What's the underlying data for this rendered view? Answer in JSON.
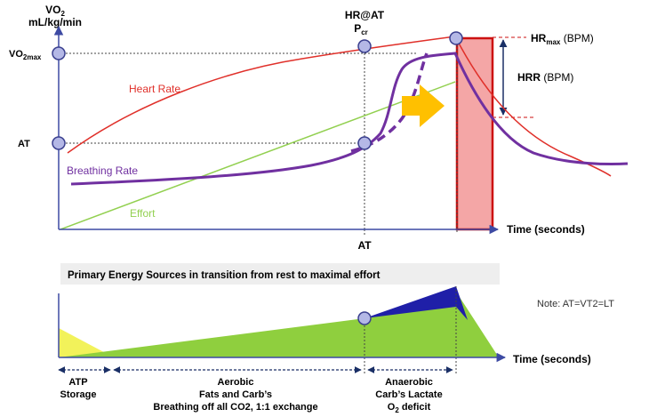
{
  "top_chart": {
    "y_axis_label_line1": "VO",
    "y_axis_label_sub": "2",
    "y_axis_label_line2": "mL/kg/min",
    "vo2max_label": "VO",
    "vo2max_sub": "2max",
    "at_label": "AT",
    "hr_at_label": "HR@AT",
    "pcr_label": "P",
    "pcr_sub": "cr",
    "hrmax_label": "HR",
    "hrmax_sub": "max",
    "hrmax_unit": " (BPM)",
    "hrr_label": "HRR",
    "hrr_unit": " (BPM)",
    "heart_rate_label": "Heart Rate",
    "breathing_rate_label": "Breathing Rate",
    "effort_label": "Effort",
    "x_axis_label": "Time (seconds)",
    "x_at_label": "AT"
  },
  "bottom_chart": {
    "title": "Primary Energy Sources in transition from rest to maximal effort",
    "note": "Note: AT=VT2=LT",
    "x_axis_label": "Time (seconds)",
    "phase_atp_line1": "ATP",
    "phase_atp_line2": "Storage",
    "phase_aerobic_line1": "Aerobic",
    "phase_aerobic_line2": "Fats and Carb’s",
    "phase_aerobic_line3": "Breathing off all CO2, 1:1 exchange",
    "phase_anaerobic_line1": "Anaerobic",
    "phase_anaerobic_line2": "Carb’s Lactate",
    "phase_anaerobic_line3": "O",
    "phase_anaerobic_sub": "2",
    "phase_anaerobic_line3b": " deficit"
  },
  "colors": {
    "heart_rate": "#e0302a",
    "breathing_rate": "#7030a0",
    "effort": "#92d050",
    "marker_fill": "#b4b8e6",
    "marker_stroke": "#3a3f8f",
    "axis": "#3d4aa3",
    "arrow": "#ffc000",
    "sprint_box": "#f4a6a6",
    "sprint_border": "#cc1111",
    "green_area": "#8fcf3e",
    "blue_area": "#1f1fa8",
    "yellow_area": "#f2f25a",
    "banner": "#eeeeee"
  }
}
